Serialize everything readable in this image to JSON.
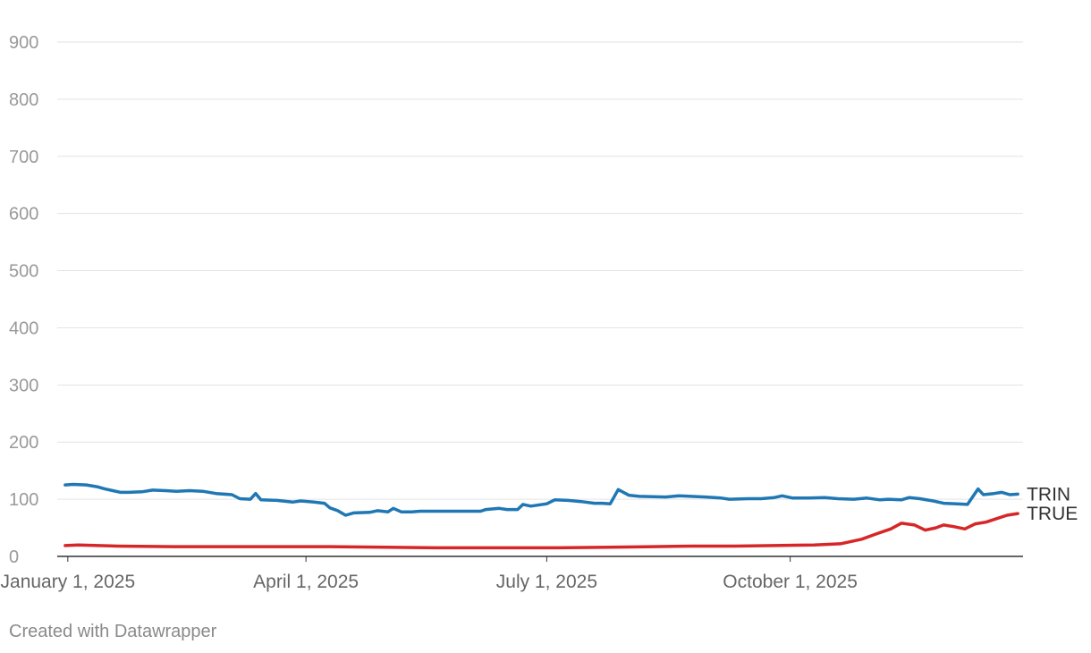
{
  "footer": {
    "credit": "Created with Datawrapper"
  },
  "chart_data": {
    "type": "line",
    "title": "",
    "xlabel": "",
    "ylabel": "",
    "xlim": [
      "2024-12-28",
      "2025-12-28"
    ],
    "ylim": [
      0,
      900
    ],
    "yticks": [
      0,
      100,
      200,
      300,
      400,
      500,
      600,
      700,
      800,
      900
    ],
    "xticks": [
      {
        "date": "2025-01-01",
        "label": "January 1, 2025"
      },
      {
        "date": "2025-04-01",
        "label": "April 1, 2025"
      },
      {
        "date": "2025-07-01",
        "label": "July 1, 2025"
      },
      {
        "date": "2025-10-01",
        "label": "October 1, 2025"
      }
    ],
    "grid": true,
    "legend": "direct labels at line ends",
    "series": [
      {
        "name": "TRIN",
        "color": "#1f77b4",
        "points": [
          [
            "2024-12-31",
            125
          ],
          [
            "2025-01-03",
            126
          ],
          [
            "2025-01-08",
            125
          ],
          [
            "2025-01-12",
            122
          ],
          [
            "2025-01-15",
            118
          ],
          [
            "2025-01-18",
            115
          ],
          [
            "2025-01-21",
            112
          ],
          [
            "2025-01-24",
            112
          ],
          [
            "2025-01-29",
            113
          ],
          [
            "2025-02-02",
            116
          ],
          [
            "2025-02-07",
            115
          ],
          [
            "2025-02-11",
            114
          ],
          [
            "2025-02-16",
            115
          ],
          [
            "2025-02-21",
            114
          ],
          [
            "2025-02-26",
            110
          ],
          [
            "2025-03-04",
            108
          ],
          [
            "2025-03-07",
            101
          ],
          [
            "2025-03-11",
            100
          ],
          [
            "2025-03-13",
            110
          ],
          [
            "2025-03-15",
            99
          ],
          [
            "2025-03-21",
            98
          ],
          [
            "2025-03-27",
            95
          ],
          [
            "2025-03-30",
            97
          ],
          [
            "2025-04-04",
            95
          ],
          [
            "2025-04-08",
            93
          ],
          [
            "2025-04-10",
            85
          ],
          [
            "2025-04-13",
            80
          ],
          [
            "2025-04-16",
            72
          ],
          [
            "2025-04-19",
            76
          ],
          [
            "2025-04-25",
            77
          ],
          [
            "2025-04-28",
            80
          ],
          [
            "2025-05-02",
            78
          ],
          [
            "2025-05-04",
            84
          ],
          [
            "2025-05-07",
            78
          ],
          [
            "2025-05-11",
            78
          ],
          [
            "2025-05-14",
            79
          ],
          [
            "2025-05-18",
            79
          ],
          [
            "2025-06-06",
            79
          ],
          [
            "2025-06-08",
            82
          ],
          [
            "2025-06-13",
            84
          ],
          [
            "2025-06-16",
            82
          ],
          [
            "2025-06-20",
            82
          ],
          [
            "2025-06-22",
            91
          ],
          [
            "2025-06-25",
            88
          ],
          [
            "2025-07-01",
            92
          ],
          [
            "2025-07-04",
            99
          ],
          [
            "2025-07-09",
            98
          ],
          [
            "2025-07-14",
            96
          ],
          [
            "2025-07-19",
            93
          ],
          [
            "2025-07-22",
            93
          ],
          [
            "2025-07-25",
            92
          ],
          [
            "2025-07-28",
            117
          ],
          [
            "2025-08-01",
            107
          ],
          [
            "2025-08-05",
            105
          ],
          [
            "2025-08-15",
            104
          ],
          [
            "2025-08-20",
            106
          ],
          [
            "2025-08-30",
            104
          ],
          [
            "2025-09-05",
            102
          ],
          [
            "2025-09-08",
            100
          ],
          [
            "2025-09-15",
            101
          ],
          [
            "2025-09-20",
            101
          ],
          [
            "2025-09-25",
            103
          ],
          [
            "2025-09-28",
            106
          ],
          [
            "2025-10-02",
            102
          ],
          [
            "2025-10-08",
            102
          ],
          [
            "2025-10-14",
            103
          ],
          [
            "2025-10-19",
            101
          ],
          [
            "2025-10-25",
            100
          ],
          [
            "2025-10-30",
            102
          ],
          [
            "2025-11-04",
            99
          ],
          [
            "2025-11-07",
            100
          ],
          [
            "2025-11-12",
            99
          ],
          [
            "2025-11-15",
            103
          ],
          [
            "2025-11-19",
            101
          ],
          [
            "2025-11-24",
            97
          ],
          [
            "2025-11-28",
            93
          ],
          [
            "2025-12-03",
            92
          ],
          [
            "2025-12-07",
            91
          ],
          [
            "2025-12-11",
            118
          ],
          [
            "2025-12-13",
            108
          ],
          [
            "2025-12-17",
            110
          ],
          [
            "2025-12-20",
            112
          ],
          [
            "2025-12-23",
            108
          ],
          [
            "2025-12-26",
            109
          ]
        ]
      },
      {
        "name": "TRUE",
        "color": "#d62728",
        "points": [
          [
            "2024-12-31",
            19
          ],
          [
            "2025-01-05",
            20
          ],
          [
            "2025-01-20",
            18
          ],
          [
            "2025-02-10",
            17
          ],
          [
            "2025-03-01",
            17
          ],
          [
            "2025-03-20",
            17
          ],
          [
            "2025-04-10",
            17
          ],
          [
            "2025-05-01",
            16
          ],
          [
            "2025-05-20",
            15
          ],
          [
            "2025-06-15",
            15
          ],
          [
            "2025-07-05",
            15
          ],
          [
            "2025-07-25",
            16
          ],
          [
            "2025-08-10",
            17
          ],
          [
            "2025-08-25",
            18
          ],
          [
            "2025-09-10",
            18
          ],
          [
            "2025-09-25",
            19
          ],
          [
            "2025-10-10",
            20
          ],
          [
            "2025-10-20",
            22
          ],
          [
            "2025-10-28",
            30
          ],
          [
            "2025-11-03",
            40
          ],
          [
            "2025-11-08",
            48
          ],
          [
            "2025-11-12",
            58
          ],
          [
            "2025-11-17",
            55
          ],
          [
            "2025-11-21",
            46
          ],
          [
            "2025-11-25",
            50
          ],
          [
            "2025-11-28",
            55
          ],
          [
            "2025-12-02",
            52
          ],
          [
            "2025-12-06",
            48
          ],
          [
            "2025-12-10",
            57
          ],
          [
            "2025-12-14",
            60
          ],
          [
            "2025-12-18",
            66
          ],
          [
            "2025-12-22",
            72
          ],
          [
            "2025-12-26",
            75
          ]
        ]
      }
    ]
  }
}
